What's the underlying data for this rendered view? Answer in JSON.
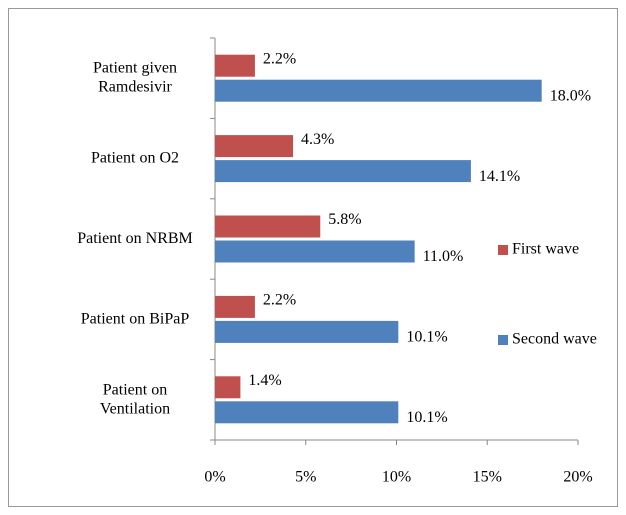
{
  "chart_data": {
    "type": "hbar",
    "categories": [
      "Patient given\nRamdesivir",
      "Patient on O2",
      "Patient on NRBM",
      "Patient on BiPaP",
      "Patient on\nVentilation"
    ],
    "series": [
      {
        "name": "First wave",
        "color": "#c0504d",
        "values": [
          2.2,
          4.3,
          5.8,
          2.2,
          1.4
        ],
        "value_labels": [
          "2.2%",
          "4.3%",
          "5.8%",
          "2.2%",
          "1.4%"
        ]
      },
      {
        "name": "Second wave",
        "color": "#4f81bd",
        "values": [
          18.0,
          14.1,
          11.0,
          10.1,
          10.1
        ],
        "value_labels": [
          "18.0%",
          "14.1%",
          "11.0%",
          "10.1%",
          "10.1%"
        ]
      }
    ],
    "xlim": [
      0,
      20
    ],
    "xticks": [
      {
        "value": 0,
        "label": "0%"
      },
      {
        "value": 5,
        "label": "5%"
      },
      {
        "value": 10,
        "label": "10%"
      },
      {
        "value": 15,
        "label": "15%"
      },
      {
        "value": 20,
        "label": "20%"
      }
    ],
    "grid": false,
    "legend": "right"
  }
}
